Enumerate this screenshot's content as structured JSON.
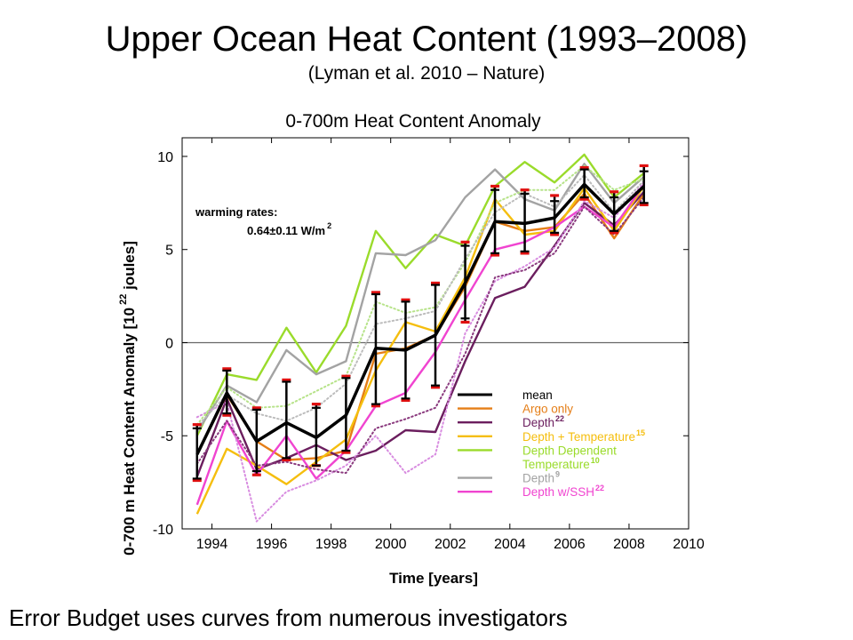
{
  "slide": {
    "title": "Upper Ocean Heat Content (1993–2008)",
    "subtitle": "(Lyman et al. 2010 – Nature)",
    "footer": "Error Budget uses curves from numerous investigators"
  },
  "chart_data": {
    "type": "line",
    "title": "0-700m Heat Content Anomaly",
    "xlabel": "Time [years]",
    "ylabel": "0-700 m Heat Content Anomaly [10",
    "ylabel_sup": "22",
    "ylabel_tail": " joules]",
    "xlim": [
      1993,
      2010
    ],
    "ylim": [
      -10,
      11
    ],
    "xticks": [
      "1994",
      "1996",
      "1998",
      "2000",
      "2002",
      "2004",
      "2006",
      "2008",
      "2010"
    ],
    "yticks": [
      "10",
      "5",
      "0",
      "-5",
      "-10"
    ],
    "zero_line": true,
    "annotation": {
      "line1": "warming rates:",
      "line2": "0.64±0.11 W/m",
      "line2_sup": "2"
    },
    "legend_position": "bottom-right",
    "x": [
      1993.5,
      1994.5,
      1995.5,
      1996.5,
      1997.5,
      1998.5,
      1999.5,
      2000.5,
      2001.5,
      2002.5,
      2003.5,
      2004.5,
      2005.5,
      2006.5,
      2007.5,
      2008.5
    ],
    "series": [
      {
        "name": "Argo only",
        "color": "#E57E17",
        "style": "solid",
        "values": [
          -6.0,
          -2.8,
          -5.3,
          -6.3,
          -6.2,
          -5.8,
          -0.6,
          -0.3,
          0.4,
          3.0,
          6.5,
          6.0,
          6.2,
          8.0,
          5.6,
          8.0
        ]
      },
      {
        "name": "Depth",
        "sup": "22",
        "color": "#6B1E5E",
        "style": "solid",
        "values": [
          -7.2,
          -3.0,
          -6.8,
          -6.2,
          -5.5,
          -6.3,
          -5.8,
          -4.7,
          -4.8,
          -1.0,
          2.4,
          3.0,
          5.2,
          7.5,
          6.3,
          8.1
        ]
      },
      {
        "name": "Depth + Temperature",
        "sup": "15",
        "color": "#F5BE0E",
        "style": "solid",
        "values": [
          -9.2,
          -5.7,
          -6.6,
          -7.6,
          -6.4,
          -5.2,
          -1.5,
          1.1,
          0.6,
          3.5,
          7.7,
          5.8,
          6.0,
          8.3,
          6.0,
          8.4
        ]
      },
      {
        "name": "Depth Dependent Temperature",
        "sup": "10",
        "color": "#9ADB2B",
        "style": "solid",
        "values": [
          -5.0,
          -1.7,
          -2.0,
          0.8,
          -1.6,
          0.9,
          6.0,
          4.0,
          5.8,
          5.2,
          8.4,
          9.7,
          8.6,
          10.1,
          7.8,
          9.1
        ]
      },
      {
        "name": "Depth",
        "sup": "9",
        "color": "#A3A3A3",
        "style": "solid",
        "values": [
          -4.8,
          -2.3,
          -3.2,
          -0.4,
          -1.7,
          -1.0,
          4.8,
          4.7,
          5.5,
          7.8,
          9.3,
          7.7,
          7.1,
          9.6,
          7.5,
          8.9
        ]
      },
      {
        "name": "Depth w/SSH",
        "sup": "22",
        "color": "#F044D0",
        "style": "solid",
        "values": [
          -8.7,
          -4.2,
          -7.1,
          -5.0,
          -7.3,
          -5.8,
          -3.4,
          -2.7,
          -0.5,
          2.3,
          5.0,
          5.4,
          6.2,
          7.3,
          6.2,
          8.5
        ]
      },
      {
        "name": "",
        "color": "#D88CE0",
        "style": "dotted",
        "values": [
          -4.0,
          -3.2,
          -9.6,
          -8.0,
          -7.4,
          -6.6,
          -5.0,
          -7.0,
          -6.0,
          0.5,
          3.3,
          4.1,
          5.1,
          7.6,
          6.7,
          8.6
        ]
      },
      {
        "name": "",
        "color": "#B7E38A",
        "style": "dotted",
        "values": [
          -4.4,
          -2.4,
          -3.5,
          -3.4,
          -2.6,
          -1.8,
          2.2,
          1.6,
          1.9,
          4.3,
          7.5,
          8.2,
          8.2,
          9.5,
          8.2,
          8.8
        ]
      },
      {
        "name": "",
        "color": "#BCBCBC",
        "style": "dotted",
        "values": [
          -4.5,
          -2.8,
          -3.8,
          -4.2,
          -3.5,
          -2.2,
          1.0,
          1.3,
          1.7,
          4.5,
          7.0,
          8.0,
          7.3,
          9.0,
          7.0,
          8.7
        ]
      },
      {
        "name": "",
        "color": "#8A3A7E",
        "style": "dotted",
        "values": [
          -6.5,
          -4.2,
          -6.6,
          -6.4,
          -6.8,
          -7.0,
          -4.6,
          -4.1,
          -3.5,
          -0.6,
          3.5,
          3.9,
          4.8,
          7.3,
          5.8,
          7.8
        ]
      },
      {
        "name": "mean",
        "color": "#000000",
        "style": "solid",
        "width": 3.5,
        "values": [
          -6.0,
          -2.7,
          -5.3,
          -4.3,
          -5.1,
          -3.9,
          -0.3,
          -0.4,
          0.4,
          3.2,
          6.5,
          6.4,
          6.7,
          8.5,
          6.9,
          8.4
        ]
      }
    ],
    "error_bars": {
      "x": [
        1993.5,
        1994.5,
        1995.5,
        1996.5,
        1997.5,
        1998.5,
        1999.5,
        2000.5,
        2001.5,
        2002.5,
        2003.5,
        2004.5,
        2005.5,
        2006.5,
        2007.5,
        2008.5
      ],
      "black_lo": [
        -7.3,
        -3.8,
        -6.9,
        -6.2,
        -6.6,
        -5.8,
        -3.3,
        -3.0,
        -2.3,
        1.3,
        4.8,
        4.9,
        5.9,
        7.8,
        6.0,
        7.5
      ],
      "black_hi": [
        -4.6,
        -1.5,
        -3.6,
        -2.1,
        -3.5,
        -1.9,
        2.6,
        2.2,
        3.1,
        5.2,
        8.2,
        8.0,
        7.6,
        9.3,
        7.8,
        9.2
      ],
      "red_lo": [
        -7.4,
        -3.9,
        -7.1,
        -6.3,
        -6.6,
        -5.9,
        -3.4,
        -3.1,
        -2.4,
        1.1,
        4.7,
        4.8,
        5.8,
        7.7,
        5.9,
        7.4
      ],
      "red_hi": [
        -4.4,
        -1.4,
        -3.5,
        -2.0,
        -3.3,
        -1.8,
        2.7,
        2.3,
        3.2,
        5.4,
        8.4,
        8.2,
        7.9,
        9.4,
        8.1,
        9.5
      ]
    },
    "legend": [
      {
        "label": "mean",
        "sup": "",
        "color": "#000000",
        "text_color": "#000000"
      },
      {
        "label": "Argo only",
        "sup": "",
        "color": "#E57E17",
        "text_color": "#E57E17"
      },
      {
        "label": "Depth",
        "sup": "22",
        "color": "#6B1E5E",
        "text_color": "#6B1E5E"
      },
      {
        "label": "Depth + Temperature",
        "sup": "15",
        "color": "#F5BE0E",
        "text_color": "#F5BE0E"
      },
      {
        "label": "Depth Dependent",
        "label2": "Temperature",
        "sup": "10",
        "color": "#9ADB2B",
        "text_color": "#9ADB2B"
      },
      {
        "label": "Depth",
        "sup": "9",
        "color": "#A3A3A3",
        "text_color": "#A3A3A3"
      },
      {
        "label": "Depth w/SSH",
        "sup": "22",
        "color": "#F044D0",
        "text_color": "#F044D0"
      }
    ]
  }
}
